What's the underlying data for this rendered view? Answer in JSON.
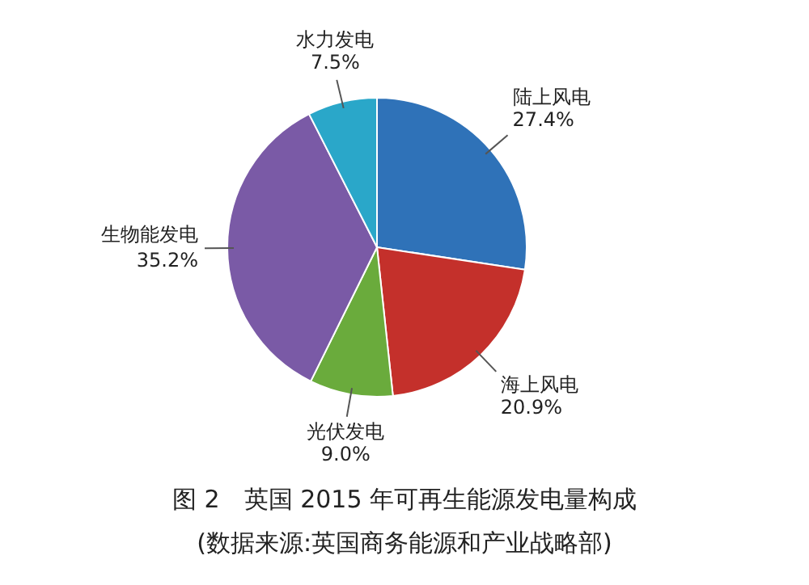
{
  "chart_data": {
    "type": "pie",
    "title": "图 2　英国 2015 年可再生能源发电量构成",
    "subtitle": "(数据来源:英国商务能源和产业战略部)",
    "categories": [
      "陆上风电",
      "海上风电",
      "光伏发电",
      "生物能发电",
      "水力发电"
    ],
    "values": [
      27.4,
      20.9,
      9.0,
      35.2,
      7.5
    ],
    "colors": [
      "#2f72b8",
      "#c4302b",
      "#6aab3c",
      "#7a5aa6",
      "#2aa7c9"
    ],
    "value_labels": [
      "27.4%",
      "20.9%",
      "9.0%",
      "35.2%",
      "7.5%"
    ],
    "legend": false
  }
}
